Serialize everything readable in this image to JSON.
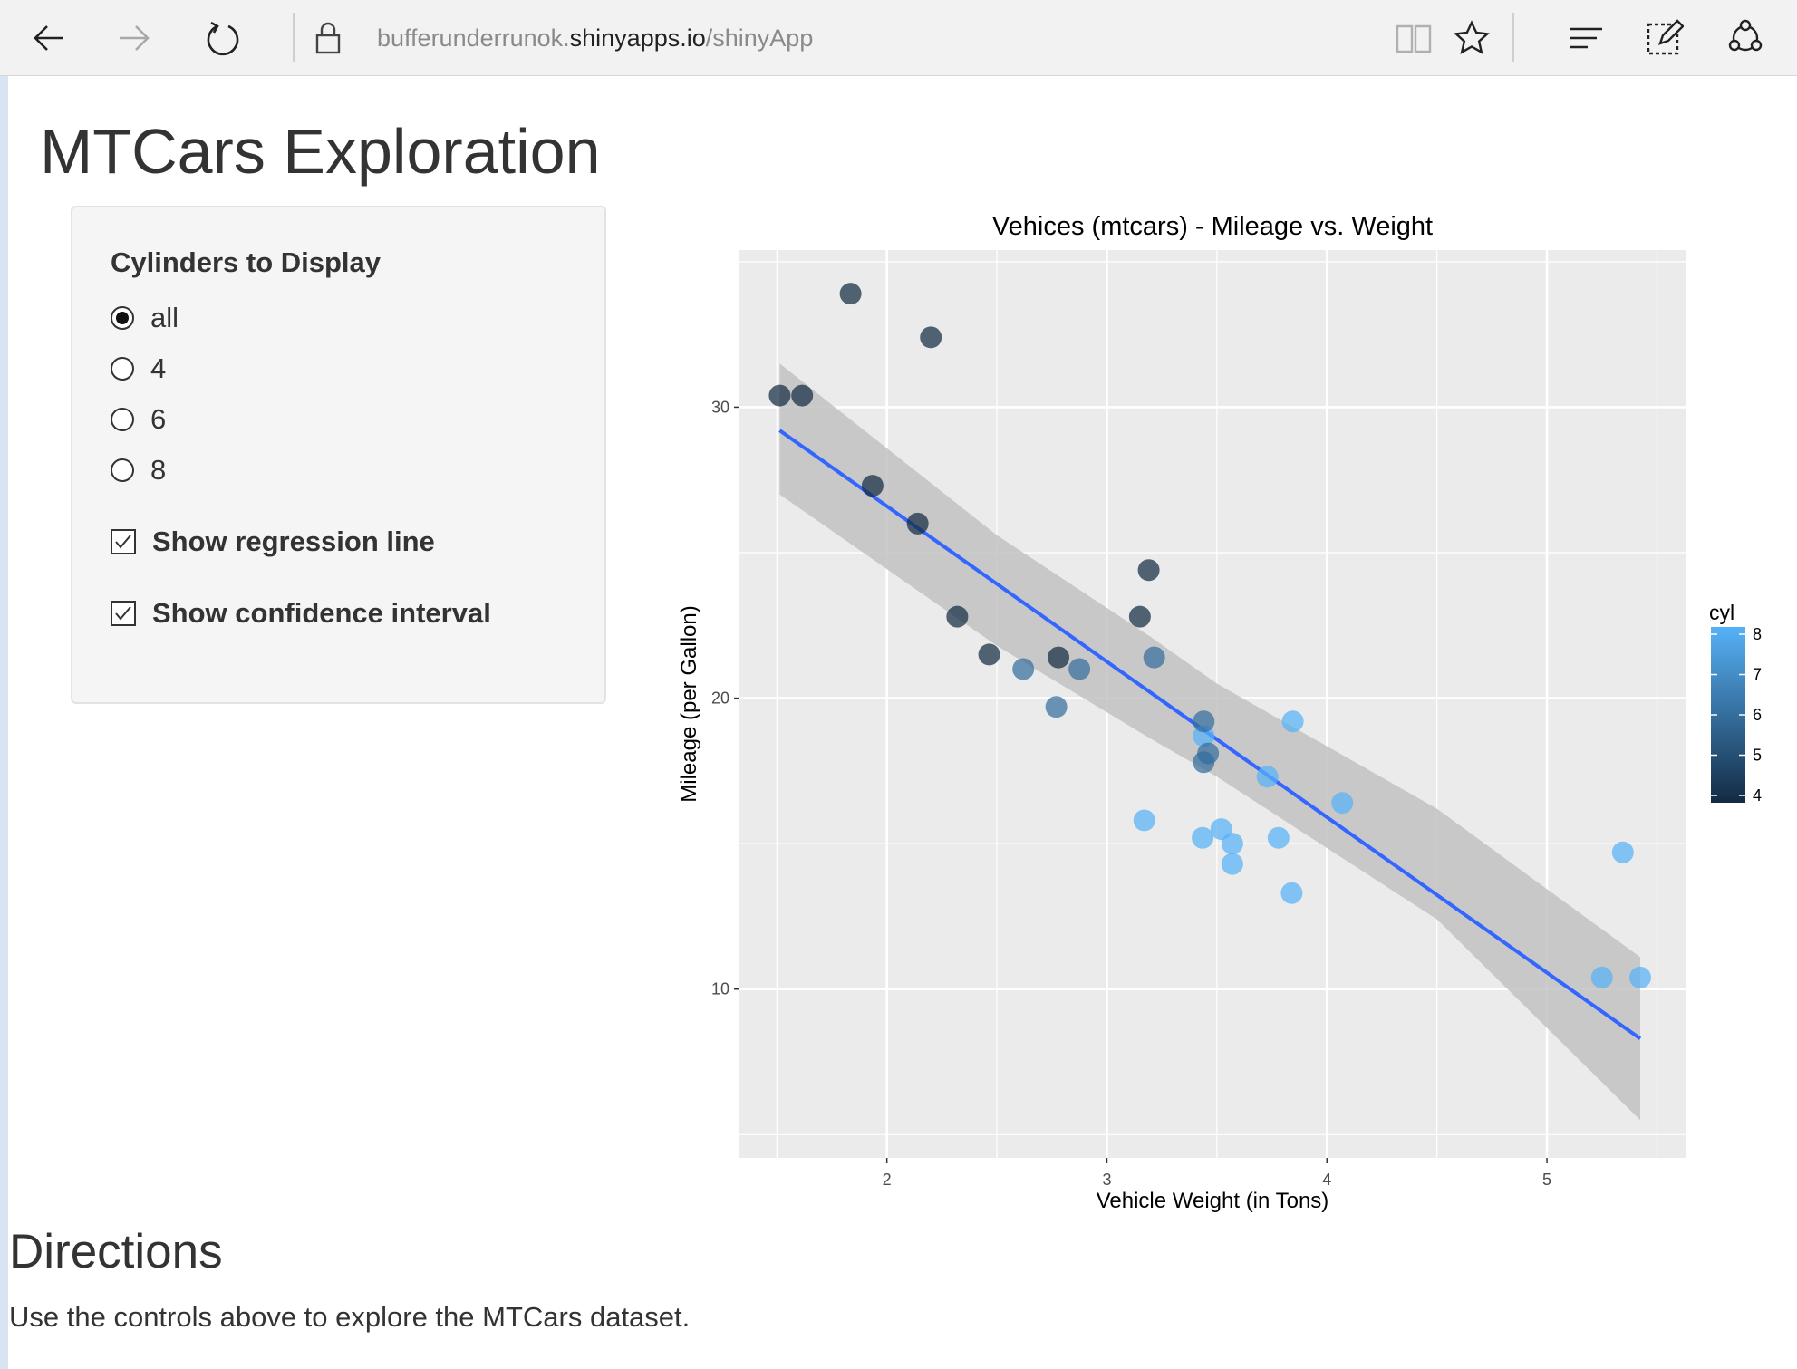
{
  "browser": {
    "url_host": "bufferunderrunok.shinyapps.io",
    "url_path": "/shinyApp",
    "url_prefix": "bufferunderrunok.",
    "url_domain": "shinyapps.io"
  },
  "page": {
    "title": "MTCars Exploration",
    "directions_title": "Directions",
    "directions_text": "Use the controls above to explore the MTCars dataset."
  },
  "controls": {
    "cyl_label": "Cylinders to Display",
    "cyl_options": [
      "all",
      "4",
      "6",
      "8"
    ],
    "cyl_selected": "all",
    "regression_label": "Show regression line",
    "regression_checked": true,
    "ci_label": "Show confidence interval",
    "ci_checked": true
  },
  "chart_data": {
    "type": "scatter",
    "title": "Vehices (mtcars) - Mileage vs. Weight",
    "xlabel": "Vehicle Weight (in Tons)",
    "ylabel": "Mileage (per Gallon)",
    "xlim": [
      1.33,
      5.63
    ],
    "ylim": [
      4.2,
      35.4
    ],
    "xticks": [
      2,
      3,
      4,
      5
    ],
    "yticks": [
      10,
      20,
      30
    ],
    "grid": true,
    "points": [
      {
        "x": 1.513,
        "y": 30.4,
        "cyl": 4
      },
      {
        "x": 1.615,
        "y": 30.4,
        "cyl": 4
      },
      {
        "x": 1.835,
        "y": 33.9,
        "cyl": 4
      },
      {
        "x": 1.935,
        "y": 27.3,
        "cyl": 4
      },
      {
        "x": 2.14,
        "y": 26.0,
        "cyl": 4
      },
      {
        "x": 2.2,
        "y": 32.4,
        "cyl": 4
      },
      {
        "x": 2.32,
        "y": 22.8,
        "cyl": 4
      },
      {
        "x": 2.465,
        "y": 21.5,
        "cyl": 4
      },
      {
        "x": 2.62,
        "y": 21.0,
        "cyl": 6
      },
      {
        "x": 2.77,
        "y": 19.7,
        "cyl": 6
      },
      {
        "x": 2.78,
        "y": 21.4,
        "cyl": 4
      },
      {
        "x": 2.875,
        "y": 21.0,
        "cyl": 6
      },
      {
        "x": 3.15,
        "y": 22.8,
        "cyl": 4
      },
      {
        "x": 3.17,
        "y": 15.8,
        "cyl": 8
      },
      {
        "x": 3.19,
        "y": 24.4,
        "cyl": 4
      },
      {
        "x": 3.215,
        "y": 21.4,
        "cyl": 6
      },
      {
        "x": 3.435,
        "y": 15.2,
        "cyl": 8
      },
      {
        "x": 3.44,
        "y": 18.7,
        "cyl": 8
      },
      {
        "x": 3.44,
        "y": 19.2,
        "cyl": 6
      },
      {
        "x": 3.44,
        "y": 17.8,
        "cyl": 6
      },
      {
        "x": 3.46,
        "y": 18.1,
        "cyl": 6
      },
      {
        "x": 3.52,
        "y": 15.5,
        "cyl": 8
      },
      {
        "x": 3.57,
        "y": 14.3,
        "cyl": 8
      },
      {
        "x": 3.57,
        "y": 15.0,
        "cyl": 8
      },
      {
        "x": 3.73,
        "y": 17.3,
        "cyl": 8
      },
      {
        "x": 3.78,
        "y": 15.2,
        "cyl": 8
      },
      {
        "x": 3.84,
        "y": 13.3,
        "cyl": 8
      },
      {
        "x": 3.845,
        "y": 19.2,
        "cyl": 8
      },
      {
        "x": 4.07,
        "y": 16.4,
        "cyl": 8
      },
      {
        "x": 5.25,
        "y": 10.4,
        "cyl": 8
      },
      {
        "x": 5.345,
        "y": 14.7,
        "cyl": 8
      },
      {
        "x": 5.424,
        "y": 10.4,
        "cyl": 8
      }
    ],
    "regression": {
      "x": [
        1.513,
        5.424
      ],
      "y": [
        29.2,
        8.3
      ]
    },
    "confidence_band": {
      "x": [
        1.513,
        2.5,
        3.2,
        3.5,
        4.5,
        5.424
      ],
      "upper": [
        31.5,
        25.6,
        22.1,
        20.5,
        16.2,
        11.1
      ],
      "lower": [
        27.0,
        21.8,
        18.6,
        17.3,
        12.4,
        5.5
      ]
    },
    "legend": {
      "title": "cyl",
      "ticks": [
        8,
        7,
        6,
        5,
        4
      ],
      "position": "right",
      "color_low": "#132b43",
      "color_high": "#56b1f7"
    },
    "colors": {
      "panel": "#ebebeb",
      "grid": "#ffffff",
      "line": "#3366ff",
      "band": "#c2c2c2"
    }
  }
}
